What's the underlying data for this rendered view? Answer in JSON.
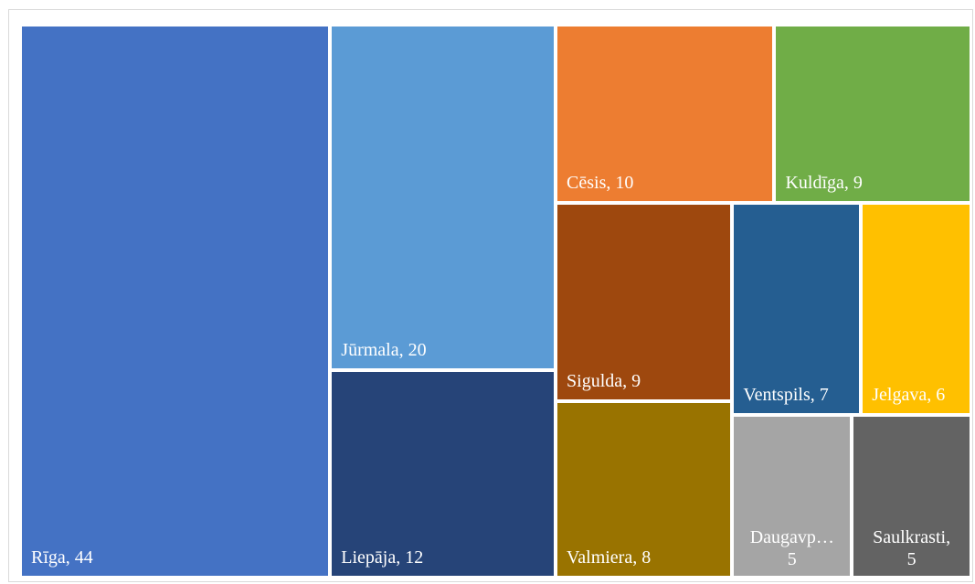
{
  "chart_data": {
    "type": "treemap",
    "nodes": [
      {
        "name": "Rīga",
        "value": 44,
        "label": "Rīga, 44",
        "color": "#4472C4"
      },
      {
        "name": "Jūrmala",
        "value": 20,
        "label": "Jūrmala, 20",
        "color": "#5B9BD5"
      },
      {
        "name": "Liepāja",
        "value": 12,
        "label": "Liepāja, 12",
        "color": "#264478"
      },
      {
        "name": "Cēsis",
        "value": 10,
        "label": "Cēsis, 10",
        "color": "#ED7D31"
      },
      {
        "name": "Kuldīga",
        "value": 9,
        "label": "Kuldīga, 9",
        "color": "#70AD47"
      },
      {
        "name": "Sigulda",
        "value": 9,
        "label": "Sigulda, 9",
        "color": "#9E480E"
      },
      {
        "name": "Valmiera",
        "value": 8,
        "label": "Valmiera, 8",
        "color": "#997300"
      },
      {
        "name": "Ventspils",
        "value": 7,
        "label": "Ventspils, 7",
        "color": "#255E91"
      },
      {
        "name": "Jelgava",
        "value": 6,
        "label": "Jelgava, 6",
        "color": "#FFC000"
      },
      {
        "name": "Daugavpils",
        "value": 5,
        "label": "Daugavp…\n5",
        "color": "#A5A5A5"
      },
      {
        "name": "Saulkrasti",
        "value": 5,
        "label": "Saulkrasti,\n5",
        "color": "#636363"
      }
    ]
  }
}
